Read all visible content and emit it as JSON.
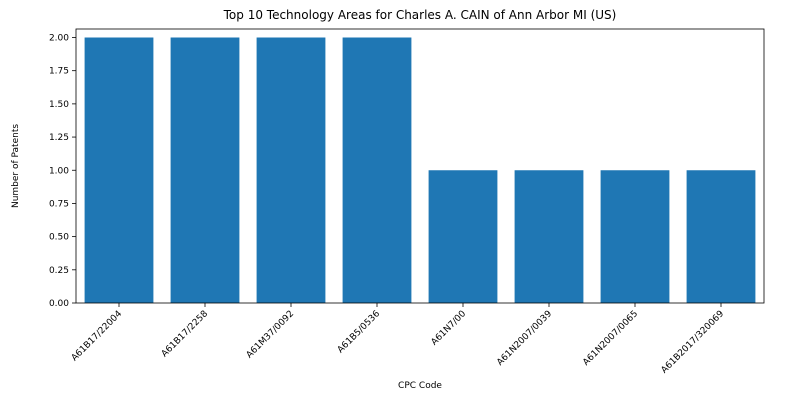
{
  "chart_data": {
    "type": "bar",
    "title": "Top 10 Technology Areas for Charles A. CAIN of Ann Arbor MI (US)",
    "xlabel": "CPC Code",
    "ylabel": "Number of Patents",
    "categories": [
      "A61B17/22004",
      "A61B17/2258",
      "A61M37/0092",
      "A61B5/0536",
      "A61N7/00",
      "A61N2007/0039",
      "A61N2007/0065",
      "A61B2017/320069"
    ],
    "values": [
      2,
      2,
      2,
      2,
      1,
      1,
      1,
      1
    ],
    "ylim": [
      0,
      2.0
    ],
    "yticks": [
      "0.00",
      "0.25",
      "0.50",
      "0.75",
      "1.00",
      "1.25",
      "1.50",
      "1.75",
      "2.00"
    ],
    "bar_color": "#1f77b4",
    "grid": false,
    "legend": "none"
  }
}
